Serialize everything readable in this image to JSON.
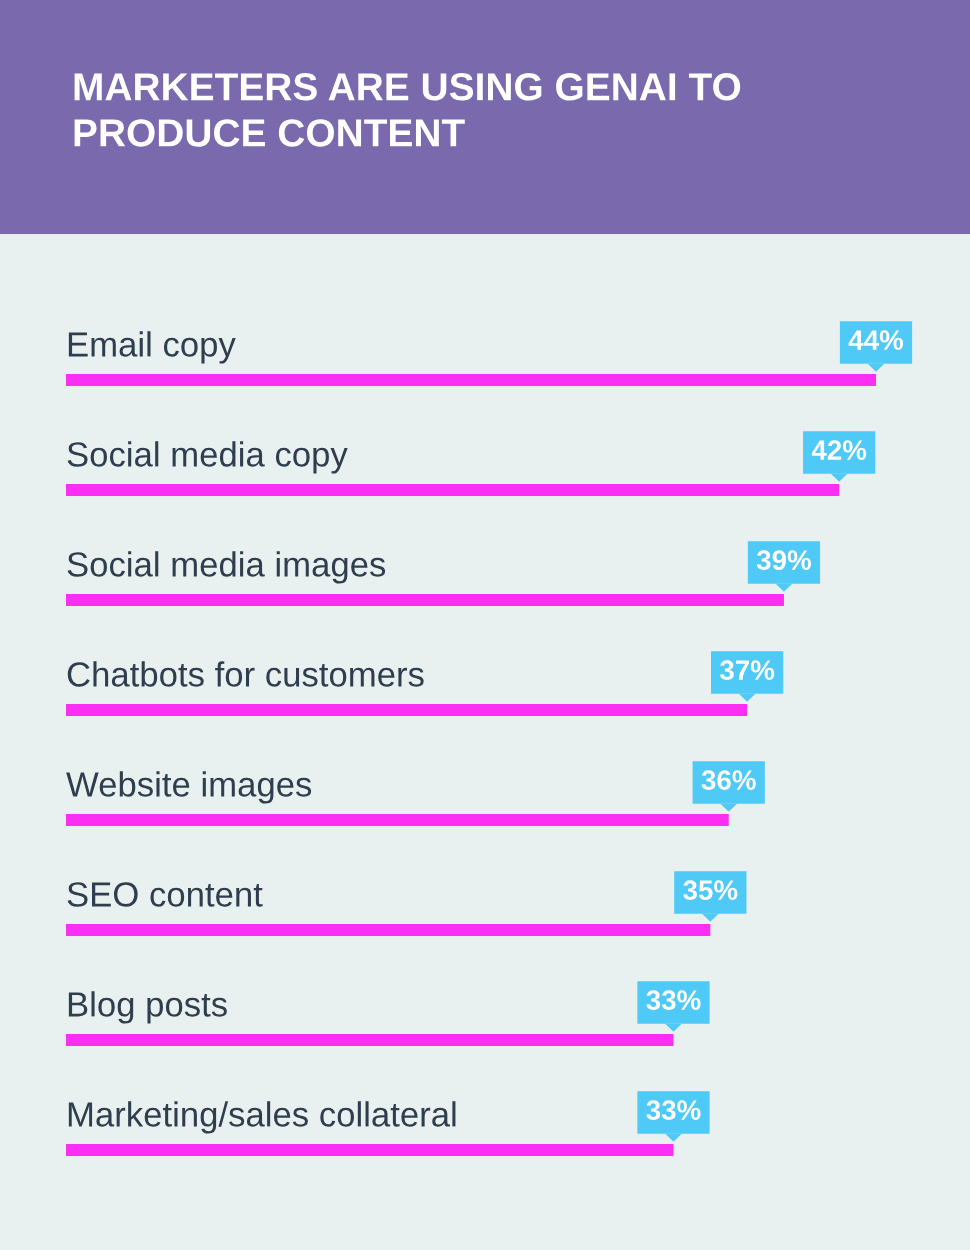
{
  "chart_data": {
    "type": "bar",
    "orientation": "horizontal",
    "title": "MARKETERS ARE USING GENAI TO PRODUCE CONTENT",
    "categories": [
      "Email copy",
      "Social media copy",
      "Social media images",
      "Chatbots for customers",
      "Website images",
      "SEO content",
      "Blog posts",
      "Marketing/sales collateral"
    ],
    "values": [
      44,
      42,
      39,
      37,
      36,
      35,
      33,
      33
    ],
    "value_labels": [
      "44%",
      "42%",
      "39%",
      "37%",
      "36%",
      "35%",
      "33%",
      "33%"
    ],
    "color": "#fb2ef3"
  }
}
